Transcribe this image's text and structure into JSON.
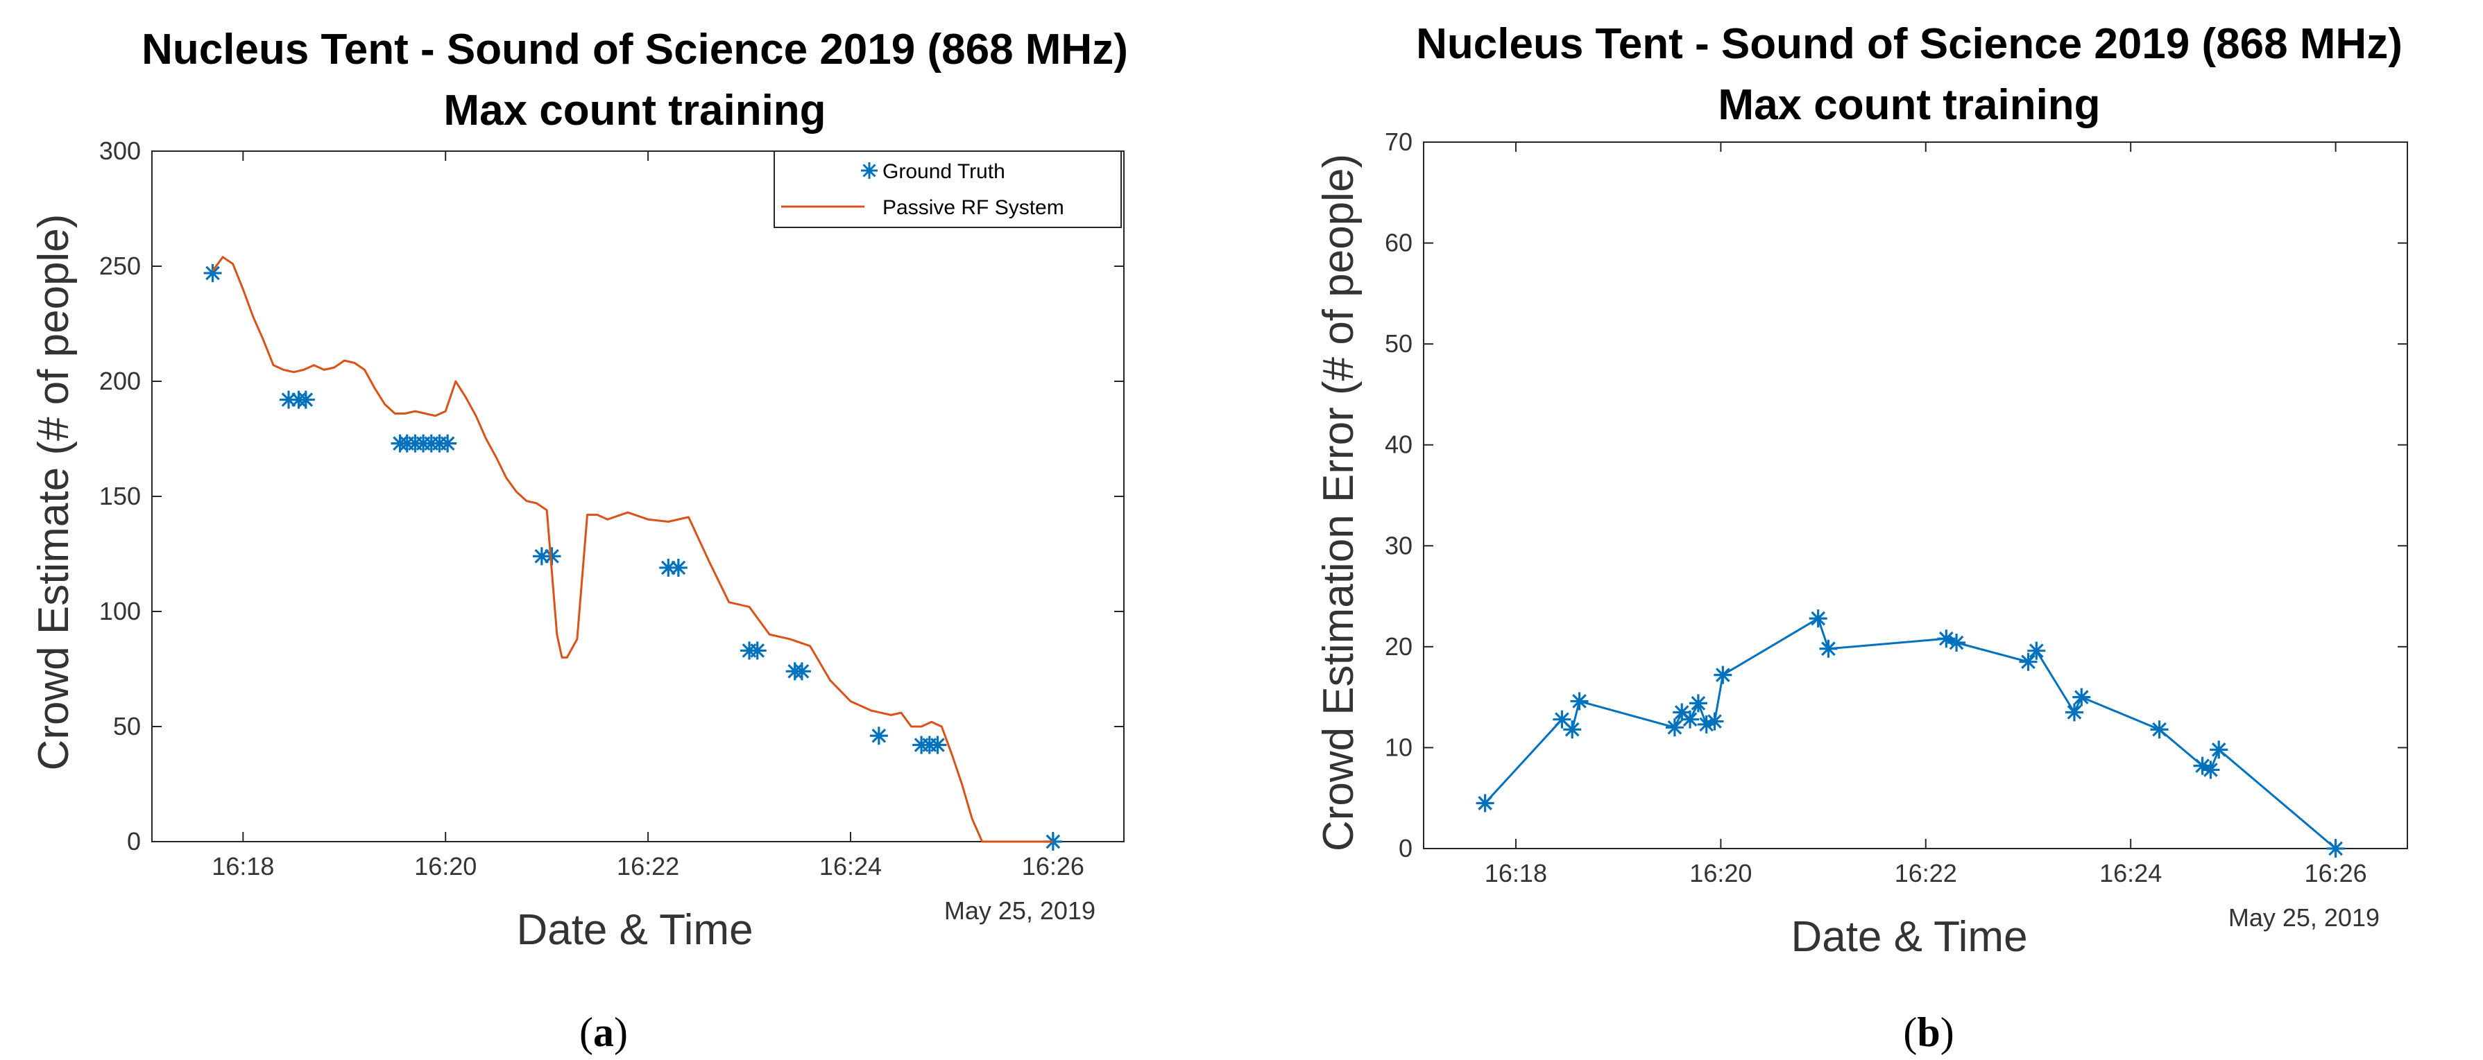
{
  "chart_data": [
    {
      "type": "line",
      "panel": "a",
      "caption_letter": "a",
      "title_line1": "Nucleus Tent - Sound of Science 2019 (868 MHz)",
      "title_line2": "Max count training",
      "xlabel": "Date & Time",
      "ylabel": "Crowd Estimate (# of people)",
      "date_label": "May 25, 2019",
      "xlim": [
        17.1,
        26.7
      ],
      "ylim": [
        0,
        300
      ],
      "yticks": [
        0,
        50,
        100,
        150,
        200,
        250,
        300
      ],
      "xticks": [
        {
          "value": 18,
          "label": "16:18"
        },
        {
          "value": 20,
          "label": "16:20"
        },
        {
          "value": 22,
          "label": "16:22"
        },
        {
          "value": 24,
          "label": "16:24"
        },
        {
          "value": 26,
          "label": "16:26"
        }
      ],
      "legend": [
        "Ground Truth",
        "Passive RF System"
      ],
      "series": [
        {
          "name": "Ground Truth",
          "kind": "marker",
          "color": "#0072BD",
          "x": [
            17.7,
            18.45,
            18.55,
            18.62,
            19.55,
            19.62,
            19.7,
            19.78,
            19.86,
            19.94,
            20.02,
            20.95,
            21.05,
            22.2,
            22.3,
            23.0,
            23.08,
            23.45,
            23.52,
            24.28,
            24.7,
            24.78,
            24.86,
            26.0
          ],
          "y": [
            247,
            192,
            192,
            192,
            173,
            173,
            173,
            173,
            173,
            173,
            173,
            124,
            124,
            119,
            119,
            83,
            83,
            74,
            74,
            46,
            42,
            42,
            42,
            0
          ]
        },
        {
          "name": "Passive RF System",
          "kind": "line",
          "color": "#D95319",
          "x": [
            17.7,
            17.8,
            17.9,
            18.0,
            18.1,
            18.2,
            18.3,
            18.4,
            18.5,
            18.6,
            18.7,
            18.8,
            18.9,
            19.0,
            19.1,
            19.2,
            19.3,
            19.4,
            19.5,
            19.6,
            19.7,
            19.8,
            19.9,
            20.0,
            20.1,
            20.2,
            20.3,
            20.4,
            20.5,
            20.6,
            20.7,
            20.8,
            20.9,
            21.0,
            21.1,
            21.15,
            21.2,
            21.3,
            21.4,
            21.5,
            21.6,
            21.8,
            22.0,
            22.2,
            22.4,
            22.6,
            22.8,
            23.0,
            23.2,
            23.4,
            23.6,
            23.8,
            24.0,
            24.2,
            24.4,
            24.5,
            24.6,
            24.7,
            24.8,
            24.9,
            25.0,
            25.1,
            25.2,
            25.3,
            25.4,
            25.6,
            25.8,
            26.0
          ],
          "y": [
            248,
            254,
            251,
            240,
            228,
            218,
            207,
            205,
            204,
            205,
            207,
            205,
            206,
            209,
            208,
            205,
            197,
            190,
            186,
            186,
            187,
            186,
            185,
            187,
            200,
            193,
            185,
            175,
            167,
            158,
            152,
            148,
            147,
            144,
            90,
            80,
            80,
            88,
            142,
            142,
            140,
            143,
            140,
            139,
            141,
            122,
            104,
            102,
            90,
            88,
            85,
            70,
            61,
            57,
            55,
            56,
            50,
            50,
            52,
            50,
            38,
            25,
            10,
            0,
            0,
            0,
            0,
            0
          ]
        }
      ]
    },
    {
      "type": "line",
      "panel": "b",
      "caption_letter": "b",
      "title_line1": "Nucleus Tent - Sound of Science 2019 (868 MHz)",
      "title_line2": "Max count training",
      "xlabel": "Date & Time",
      "ylabel": "Crowd Estimation Error (# of people)",
      "date_label": "May 25, 2019",
      "xlim": [
        17.1,
        26.7
      ],
      "ylim": [
        0,
        70
      ],
      "yticks": [
        0,
        10,
        20,
        30,
        40,
        50,
        60,
        70
      ],
      "xticks": [
        {
          "value": 18,
          "label": "16:18"
        },
        {
          "value": 20,
          "label": "16:20"
        },
        {
          "value": 22,
          "label": "16:22"
        },
        {
          "value": 24,
          "label": "16:24"
        },
        {
          "value": 26,
          "label": "16:26"
        }
      ],
      "series": [
        {
          "name": "Crowd Estimation Error",
          "kind": "line+marker",
          "color": "#0072BD",
          "x": [
            17.7,
            18.45,
            18.55,
            18.62,
            19.55,
            19.62,
            19.7,
            19.78,
            19.86,
            19.94,
            20.02,
            20.95,
            21.05,
            22.2,
            22.3,
            23.0,
            23.08,
            23.45,
            23.52,
            24.28,
            24.7,
            24.78,
            24.86,
            26.0
          ],
          "y": [
            4.5,
            12.8,
            11.8,
            14.6,
            12.0,
            13.5,
            12.8,
            14.4,
            12.3,
            12.6,
            17.2,
            22.8,
            19.8,
            20.8,
            20.4,
            18.5,
            19.6,
            13.5,
            15.0,
            11.8,
            8.2,
            7.8,
            9.8,
            0.0
          ]
        }
      ]
    }
  ]
}
